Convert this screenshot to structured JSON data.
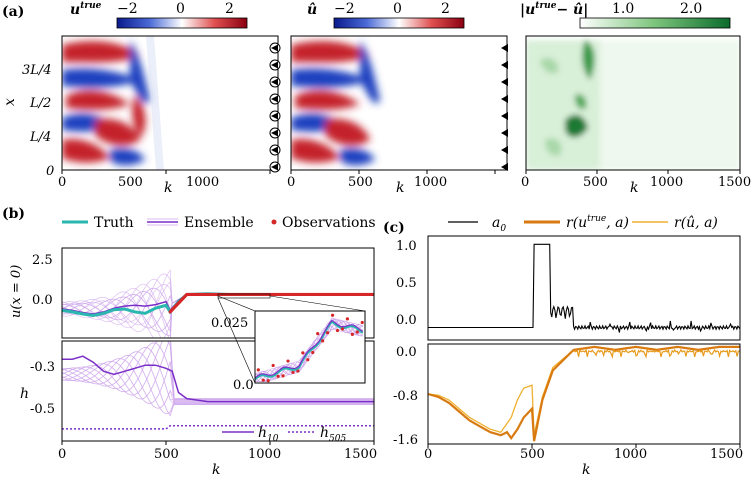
{
  "panel_labels": {
    "a": "(a)",
    "b": "(b)",
    "c": "(c)"
  },
  "top": {
    "heatmaps": [
      {
        "title_main": "u",
        "title_sup": "true",
        "cb_ticks": [
          "−2",
          "0",
          "2"
        ],
        "cmap": "RdBu",
        "observation_markers": true
      },
      {
        "title_main": "û",
        "title_sup": "",
        "cb_ticks": [
          "−2",
          "0",
          "2"
        ],
        "cmap": "RdBu",
        "observation_markers": false
      },
      {
        "title_main": "|u",
        "title_sup": "true",
        "title_tail": "− û|",
        "cb_ticks": [
          "1.0",
          "2.0"
        ],
        "cmap": "Greens",
        "observation_markers": false
      }
    ],
    "ylabel": "x",
    "yticks": [
      "0",
      "L/4",
      "L/2",
      "3L/4"
    ],
    "xlabel": "k",
    "xticks": [
      "0",
      "500",
      "1000",
      "1500"
    ]
  },
  "chart_data": [
    {
      "type": "heatmap",
      "title": "u^true",
      "ylabel": "x",
      "xlabel": "k",
      "xlim": [
        0,
        1500
      ],
      "clim": [
        -3,
        3
      ],
      "yticks": [
        "0",
        "L/4",
        "L/2",
        "3L/4"
      ],
      "xticks": [
        0,
        500,
        1000,
        1500
      ],
      "observations_markers": 8
    },
    {
      "type": "heatmap",
      "title": "û",
      "xlabel": "k",
      "xlim": [
        0,
        1500
      ],
      "clim": [
        -3,
        3
      ],
      "xticks": [
        0,
        500,
        1000,
        1500
      ]
    },
    {
      "type": "heatmap",
      "title": "|u^true − û|",
      "xlabel": "k",
      "xlim": [
        0,
        1500
      ],
      "clim": [
        0,
        2.8
      ],
      "xticks": [
        0,
        500,
        1000,
        1500
      ]
    },
    {
      "type": "line",
      "ylabel": "u(x = 0)",
      "xlim": [
        0,
        1500
      ],
      "ylim": [
        -3,
        3.2
      ],
      "yticks": [
        2.5,
        0.0
      ],
      "legend": [
        "Truth",
        "Ensemble",
        "Observations"
      ],
      "legend_placement": "top",
      "series": [
        {
          "name": "Truth",
          "color": "#2ab7b0",
          "x": [
            0,
            50,
            100,
            150,
            200,
            250,
            300,
            350,
            400,
            450,
            500,
            520,
            560,
            600,
            700,
            800,
            1000,
            1500
          ],
          "y": [
            -1.1,
            -1.2,
            -1.35,
            -1.45,
            -1.3,
            -1.05,
            -1.0,
            -1.2,
            -1.3,
            -0.95,
            -0.75,
            -1.2,
            -0.5,
            0.0,
            0.05,
            0.0,
            0.0,
            0.0
          ]
        },
        {
          "name": "Ensemble",
          "color": "#7a2fc7",
          "x": [
            0,
            50,
            100,
            150,
            200,
            250,
            300,
            350,
            400,
            450,
            500,
            520,
            560,
            600,
            700,
            800,
            1000,
            1500
          ],
          "y": [
            -1.0,
            -1.1,
            -1.25,
            -1.35,
            -1.2,
            -0.95,
            -0.8,
            -0.75,
            -0.8,
            -0.7,
            -0.5,
            -1.1,
            -0.4,
            0.0,
            0.05,
            0.0,
            0.0,
            0.0
          ]
        },
        {
          "name": "Observations",
          "color": "#d62728",
          "x": [
            520,
            540,
            560,
            580,
            600,
            700,
            800,
            900,
            1000,
            1100,
            1200,
            1300,
            1400,
            1500
          ],
          "y": [
            -1.2,
            -0.8,
            -0.4,
            -0.1,
            0.0,
            0.02,
            0.0,
            0.01,
            0.0,
            0.0,
            0.0,
            0.0,
            0.0,
            0.0
          ]
        }
      ],
      "inset": {
        "yticks": [
          "0.0",
          "0.025"
        ]
      }
    },
    {
      "type": "line",
      "ylabel": "h",
      "xlabel": "k",
      "xlim": [
        0,
        1500
      ],
      "ylim": [
        -0.58,
        -0.25
      ],
      "yticks": [
        -0.3,
        -0.5
      ],
      "xticks": [
        0,
        500,
        1000,
        1500
      ],
      "legend": [
        "h10",
        "h505"
      ],
      "series": [
        {
          "name": "h10",
          "color": "#7a2fc7",
          "dash": false,
          "x": [
            0,
            50,
            100,
            150,
            200,
            250,
            300,
            350,
            400,
            450,
            500,
            530,
            560,
            600,
            700,
            800,
            1000,
            1500
          ],
          "y": [
            -0.31,
            -0.31,
            -0.3,
            -0.32,
            -0.35,
            -0.36,
            -0.35,
            -0.34,
            -0.33,
            -0.33,
            -0.34,
            -0.35,
            -0.42,
            -0.44,
            -0.45,
            -0.45,
            -0.45,
            -0.45
          ]
        },
        {
          "name": "h505",
          "color": "#7a2fc7",
          "dash": true,
          "x": [
            0,
            500,
            520,
            1500
          ],
          "y": [
            -0.54,
            -0.54,
            -0.53,
            -0.53
          ]
        }
      ]
    },
    {
      "type": "line",
      "xlim": [
        0,
        1500
      ],
      "ylim": [
        -0.15,
        1.1
      ],
      "yticks": [
        1.0,
        0.5,
        0.0
      ],
      "legend": [
        "a0",
        "r(u^true, a)",
        "r(û, a)"
      ],
      "legend_placement": "top",
      "series": [
        {
          "name": "a0",
          "color": "#000000",
          "x": [
            0,
            510,
            512,
            590,
            600,
            620,
            640,
            660,
            700,
            800,
            900,
            1000,
            1100,
            1200,
            1300,
            1400,
            1500
          ],
          "y": [
            0.0,
            0.0,
            1.0,
            1.0,
            0.1,
            0.25,
            0.05,
            0.1,
            0.02,
            0.0,
            0.02,
            0.0,
            0.0,
            -0.05,
            0.0,
            0.02,
            0.0
          ]
        }
      ]
    },
    {
      "type": "line",
      "xlabel": "k",
      "xlim": [
        0,
        1500
      ],
      "ylim": [
        -1.65,
        0.05
      ],
      "yticks": [
        0.0,
        -0.8,
        -1.6
      ],
      "xticks": [
        0,
        500,
        1000,
        1500
      ],
      "series": [
        {
          "name": "r(u^true, a)",
          "color": "#d97a10",
          "x": [
            0,
            50,
            100,
            150,
            200,
            250,
            300,
            350,
            380,
            400,
            430,
            460,
            500,
            510,
            550,
            600,
            700,
            800,
            900,
            1000,
            1100,
            1200,
            1300,
            1400,
            1500
          ],
          "y": [
            -0.8,
            -0.85,
            -0.95,
            -1.1,
            -1.25,
            -1.35,
            -1.45,
            -1.5,
            -1.45,
            -1.55,
            -1.4,
            -1.2,
            -1.05,
            -1.6,
            -0.9,
            -0.4,
            -0.05,
            0.0,
            -0.05,
            0.0,
            -0.05,
            0.0,
            -0.05,
            0.0,
            0.0
          ]
        },
        {
          "name": "r(û, a)",
          "color": "#f0b030",
          "x": [
            0,
            50,
            100,
            150,
            200,
            250,
            300,
            350,
            400,
            430,
            460,
            500,
            510,
            550,
            600,
            700,
            800,
            900,
            1000,
            1100,
            1200,
            1300,
            1400,
            1500
          ],
          "y": [
            -0.8,
            -0.82,
            -0.9,
            -1.05,
            -1.2,
            -1.3,
            -1.4,
            -1.45,
            -1.2,
            -0.9,
            -0.7,
            -0.65,
            -1.5,
            -0.85,
            -0.35,
            -0.05,
            0.0,
            -0.05,
            0.0,
            -0.05,
            0.0,
            -0.05,
            0.0,
            0.0
          ]
        }
      ]
    }
  ],
  "bottom_left": {
    "legend": {
      "truth": "Truth",
      "ensemble": "Ensemble",
      "observations": "Observations"
    },
    "u_ylabel": "u(x = 0)",
    "u_yticks": [
      "2.5",
      "0.0"
    ],
    "inset_yticks": [
      "0.025",
      "0.0"
    ],
    "h_ylabel": "h",
    "h_yticks": [
      "-0.3",
      "-0.5"
    ],
    "h_legend": {
      "h10_main": "h",
      "h10_sub": "10",
      "h505_main": "h",
      "h505_sub": "505"
    },
    "xlabel": "k",
    "xticks": [
      "0",
      "500",
      "1000",
      "1500"
    ]
  },
  "bottom_right": {
    "legend": {
      "a0_main": "a",
      "a0_sub": "0",
      "r1": "r(u",
      "r1_sup": "true",
      "r1_tail": ", a)",
      "r2": "r(û, a)"
    },
    "top_yticks": [
      "1.0",
      "0.5",
      "0.0"
    ],
    "bottom_yticks": [
      "0.0",
      "-0.8",
      "-1.6"
    ],
    "xlabel": "k",
    "xticks": [
      "0",
      "500",
      "1000",
      "1500"
    ]
  }
}
